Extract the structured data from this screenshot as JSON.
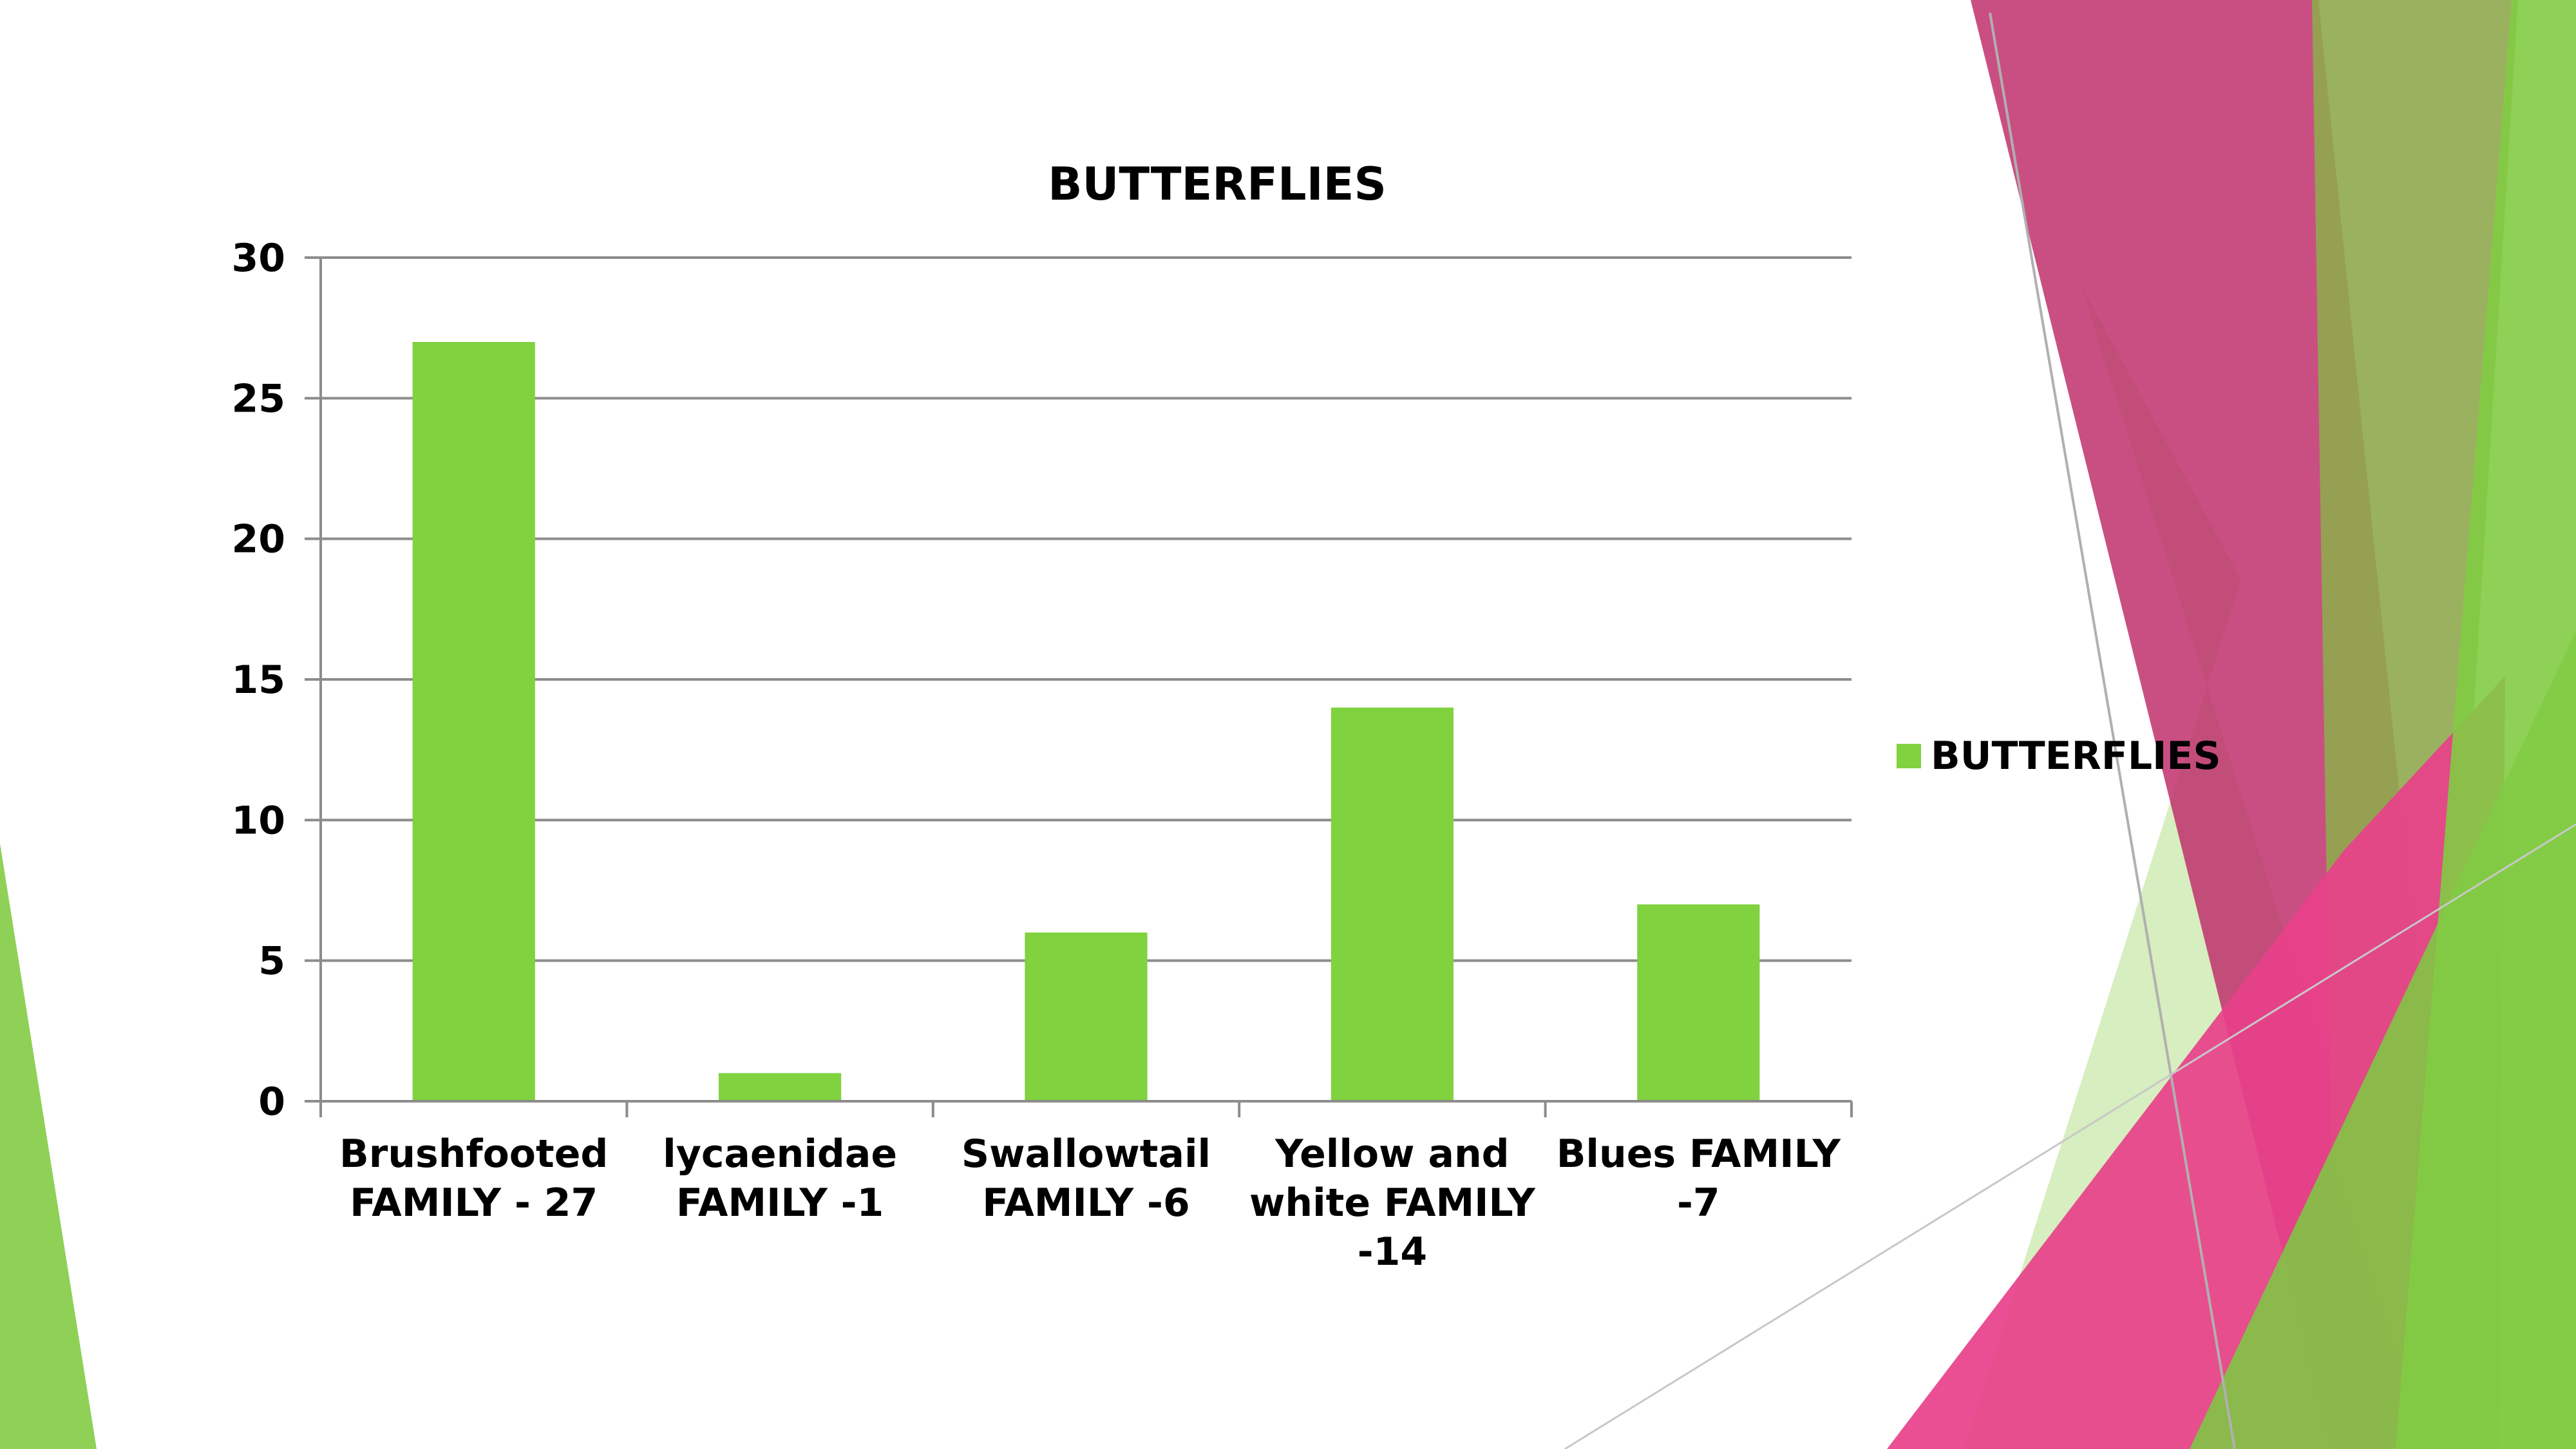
{
  "colors": {
    "bar": "#80d23e",
    "grid": "#8c8c8c",
    "axis": "#8c8c8c",
    "magenta": "#c8306e",
    "pink": "#e8408a",
    "green": "#82cc44",
    "olive": "#8fa84e",
    "light_green": "#cdeab0"
  },
  "chart_data": {
    "type": "bar",
    "title": "BUTTERFLIES",
    "categories": [
      [
        "Brushfooted",
        "FAMILY - 27"
      ],
      [
        "lycaenidae",
        "FAMILY -1"
      ],
      [
        "Swallowtail",
        "FAMILY -6"
      ],
      [
        "Yellow and",
        "white  FAMILY",
        "-14"
      ],
      [
        "Blues  FAMILY",
        "-7"
      ]
    ],
    "series": [
      {
        "name": "BUTTERFLIES",
        "values": [
          27,
          1,
          6,
          14,
          7
        ]
      }
    ],
    "ylim": [
      0,
      30
    ],
    "yticks": [
      0,
      5,
      10,
      15,
      20,
      25,
      30
    ],
    "grid": true,
    "legend_position": "right"
  }
}
